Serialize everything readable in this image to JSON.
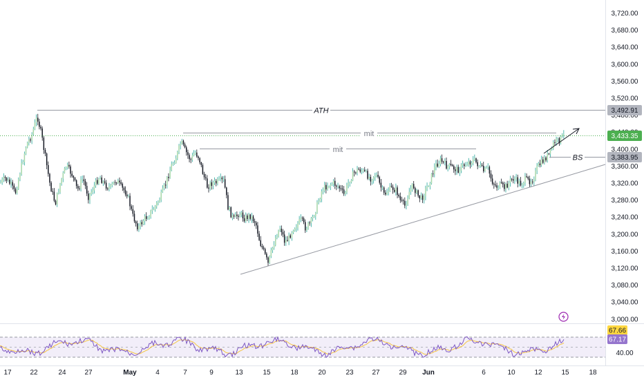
{
  "price_axis": {
    "labels": [
      "3,720.00",
      "3,680.00",
      "3,640.00",
      "3,600.00",
      "3,560.00",
      "3,520.00",
      "3,480.00",
      "3,440.00",
      "3,400.00",
      "3,360.00",
      "3,320.00",
      "3,280.00",
      "3,240.00",
      "3,200.00",
      "3,160.00",
      "3,120.00",
      "3,080.00",
      "3,040.00",
      "3,000.00"
    ],
    "badges": {
      "ath": "3,492.91",
      "last": "3,433.35",
      "bs": "3,383.95"
    }
  },
  "rsi_axis": {
    "label": "40.00",
    "badge_rsi": "67.66",
    "badge_ma": "67.17"
  },
  "time_axis": {
    "labels": [
      {
        "text": "17",
        "bold": false
      },
      {
        "text": "22",
        "bold": false
      },
      {
        "text": "24",
        "bold": false
      },
      {
        "text": "27",
        "bold": false
      },
      {
        "text": "May",
        "bold": true
      },
      {
        "text": "4",
        "bold": false
      },
      {
        "text": "7",
        "bold": false
      },
      {
        "text": "9",
        "bold": false
      },
      {
        "text": "13",
        "bold": false
      },
      {
        "text": "15",
        "bold": false
      },
      {
        "text": "18",
        "bold": false
      },
      {
        "text": "20",
        "bold": false
      },
      {
        "text": "23",
        "bold": false
      },
      {
        "text": "27",
        "bold": false
      },
      {
        "text": "29",
        "bold": false
      },
      {
        "text": "Jun",
        "bold": true
      },
      {
        "text": "6",
        "bold": false
      },
      {
        "text": "10",
        "bold": false
      },
      {
        "text": "12",
        "bold": false
      },
      {
        "text": "15",
        "bold": false
      },
      {
        "text": "18",
        "bold": false
      }
    ]
  },
  "annotations": {
    "ath": "ATH",
    "mit1": "mit",
    "mit2": "mit",
    "bs": "BS"
  },
  "colors": {
    "up": "#26a69a",
    "down": "#131722",
    "last_badge": "#4caf50",
    "gray_badge": "#b2b5be",
    "rsi_line": "#7e57c2",
    "rsi_ma": "#f5c542",
    "rsi_badge_ma": "#9575cd",
    "rsi_badge_rsi": "#ffd740",
    "alert": "#9c27b0"
  },
  "icons": {
    "alert": "lightning-bolt-icon"
  }
}
